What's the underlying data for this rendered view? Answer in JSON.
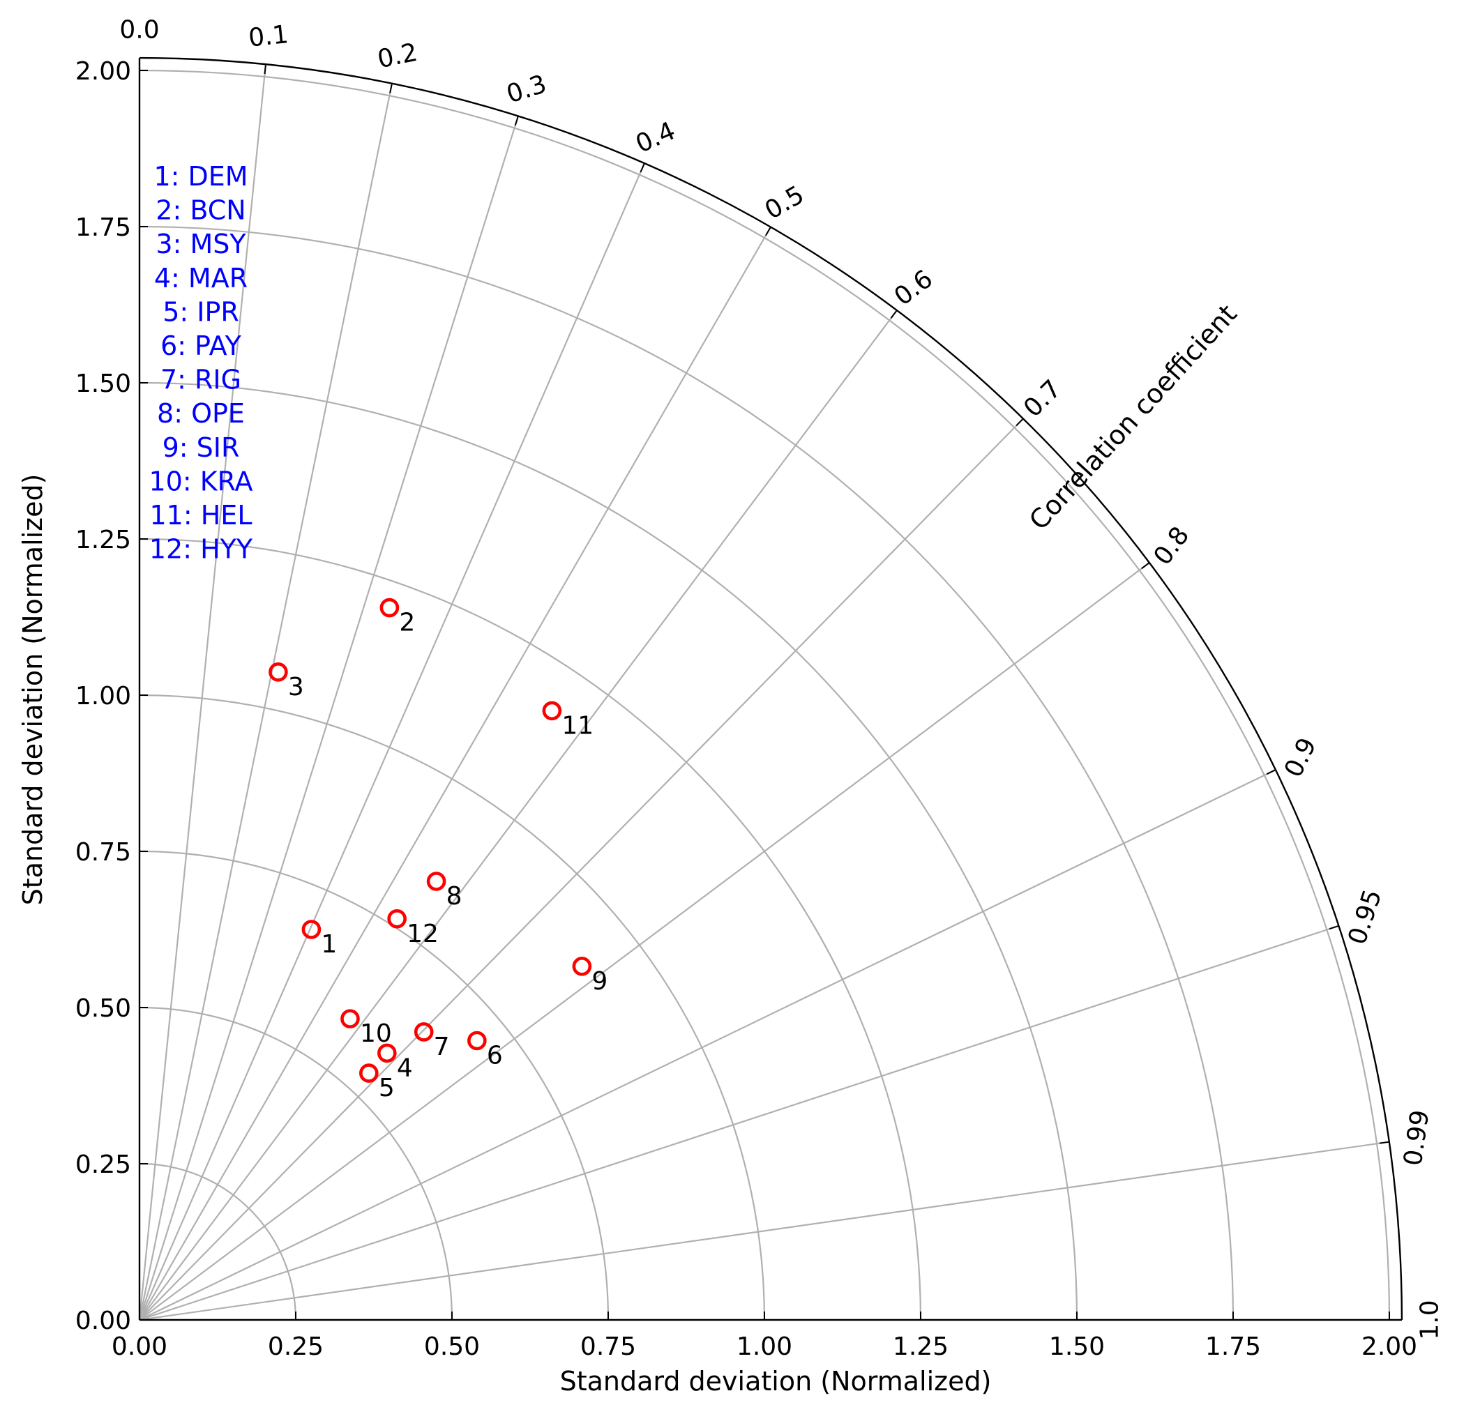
{
  "chart_data": {
    "type": "scatter",
    "subtype": "taylor-diagram",
    "xlabel": "Standard deviation (Normalized)",
    "ylabel": "Standard deviation (Normalized)",
    "corr_label": "Correlation coefficient",
    "xlim": [
      0,
      2.02
    ],
    "ylim": [
      0,
      2.02
    ],
    "std_ticks": [
      "0.00",
      "0.25",
      "0.50",
      "0.75",
      "1.00",
      "1.25",
      "1.50",
      "1.75",
      "2.00"
    ],
    "std_tick_values": [
      0,
      0.25,
      0.5,
      0.75,
      1.0,
      1.25,
      1.5,
      1.75,
      2.0
    ],
    "corr_ticks": [
      "0.0",
      "0.1",
      "0.2",
      "0.3",
      "0.4",
      "0.5",
      "0.6",
      "0.7",
      "0.8",
      "0.9",
      "0.95",
      "0.99",
      "1.0"
    ],
    "corr_tick_values": [
      0.0,
      0.1,
      0.2,
      0.3,
      0.4,
      0.5,
      0.6,
      0.7,
      0.8,
      0.9,
      0.95,
      0.99,
      1.0
    ],
    "grid": true,
    "legend_position": "upper-left",
    "colors": {
      "marker": "#ff0000",
      "legend_text": "#0000ff",
      "grid": "#b0b0b0",
      "axis": "#000000"
    },
    "legend": [
      "1: DEM",
      "2: BCN",
      "3: MSY",
      "4: MAR",
      "5: IPR",
      "6: PAY",
      "7: RIG",
      "8: OPE",
      "9: SIR",
      "10: KRA",
      "11: HEL",
      "12: HYY"
    ],
    "points": [
      {
        "label": "1",
        "x": 0.275,
        "y": 0.625
      },
      {
        "label": "2",
        "x": 0.4,
        "y": 1.14
      },
      {
        "label": "3",
        "x": 0.222,
        "y": 1.037
      },
      {
        "label": "4",
        "x": 0.396,
        "y": 0.427
      },
      {
        "label": "5",
        "x": 0.367,
        "y": 0.395
      },
      {
        "label": "6",
        "x": 0.54,
        "y": 0.447
      },
      {
        "label": "7",
        "x": 0.455,
        "y": 0.461
      },
      {
        "label": "8",
        "x": 0.475,
        "y": 0.702
      },
      {
        "label": "9",
        "x": 0.708,
        "y": 0.566
      },
      {
        "label": "10",
        "x": 0.337,
        "y": 0.482
      },
      {
        "label": "11",
        "x": 0.66,
        "y": 0.975
      },
      {
        "label": "12",
        "x": 0.412,
        "y": 0.642
      }
    ]
  }
}
